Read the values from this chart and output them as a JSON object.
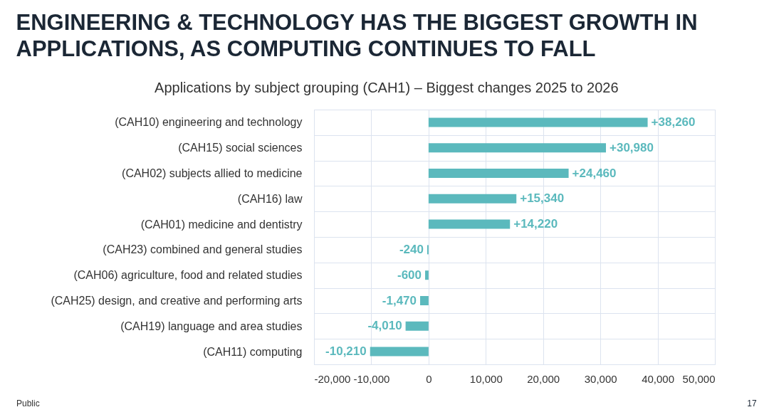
{
  "chart_data": {
    "type": "bar",
    "orientation": "horizontal",
    "title": "ENGINEERING & TECHNOLOGY HAS THE BIGGEST GROWTH IN APPLICATIONS, AS COMPUTING CONTINUES TO FALL",
    "subtitle": "Applications by subject grouping (CAH1) – Biggest changes 2025 to 2026",
    "categories": [
      "(CAH10) engineering and technology",
      "(CAH15) social sciences",
      "(CAH02) subjects allied to medicine",
      "(CAH16) law",
      "(CAH01) medicine and dentistry",
      "(CAH23) combined and general studies",
      "(CAH06) agriculture, food and related studies",
      "(CAH25) design, and creative and performing arts",
      "(CAH19) language and area studies",
      "(CAH11) computing"
    ],
    "values": [
      38260,
      30980,
      24460,
      15340,
      14220,
      -240,
      -600,
      -1470,
      -4010,
      -10210
    ],
    "value_labels": [
      "+38,260",
      "+30,980",
      "+24,460",
      "+15,340",
      "+14,220",
      "-240",
      "-600",
      "-1,470",
      "-4,010",
      "-10,210"
    ],
    "color": "#5bb9bd",
    "xlim": [
      -20000,
      50000
    ],
    "xticks": [
      {
        "value": -20000,
        "label": "-20,000"
      },
      {
        "value": -10000,
        "label": "-10,000"
      },
      0,
      {
        "value": 10000,
        "label": "10,000"
      },
      {
        "value": 20000,
        "label": "20,000"
      },
      {
        "value": 30000,
        "label": "30,000"
      },
      {
        "value": 40000,
        "label": "40,000"
      },
      {
        "value": 50000,
        "label": "50,000"
      }
    ],
    "grid": true,
    "annotations": [
      "Public",
      "17"
    ]
  }
}
